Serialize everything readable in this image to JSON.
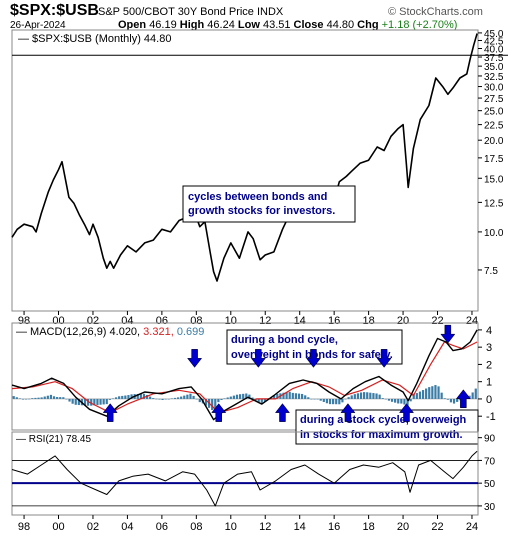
{
  "header": {
    "symbol": "$SPX:$USB",
    "description": "S&P 500/CBOT 30Y Bond Price INDX",
    "brand": "© StockCharts.com",
    "date": "26-Apr-2024",
    "open_label": "Open",
    "open": "46.19",
    "high_label": "High",
    "high": "46.24",
    "low_label": "Low",
    "low": "43.51",
    "close_label": "Close",
    "close": "44.80",
    "chg_label": "Chg",
    "chg": "+1.18 (+2.70%)"
  },
  "colors": {
    "price": "#000000",
    "macd": "#000000",
    "signal": "#d62020",
    "histogram": "#3a7ca5",
    "rsi": "#000000",
    "rsi_line": "#00008b",
    "annotation_text": "#00008b",
    "arrow": "#0000cc"
  },
  "chart_data": [
    {
      "type": "line",
      "legend": "$SPX:$USB (Monthly) 44.80",
      "x_ticks": [
        "98",
        "00",
        "02",
        "04",
        "06",
        "08",
        "10",
        "12",
        "14",
        "16",
        "18",
        "20",
        "22",
        "24"
      ],
      "y_ticks": [
        7.5,
        10.0,
        12.5,
        15.0,
        17.5,
        20.0,
        22.5,
        25.0,
        27.5,
        30.0,
        32.5,
        35.0,
        37.5,
        40.0,
        42.5,
        45.0
      ],
      "ylim": [
        5.5,
        46
      ],
      "scale": "log",
      "reference_line": 38.0,
      "annotation": [
        "cycles between bonds and",
        "growth stocks for investors."
      ],
      "series": [
        {
          "x": [
            1997.3,
            1997.6,
            1998.0,
            1998.5,
            1998.7,
            1999.0,
            1999.4,
            1999.7,
            2000.0,
            2000.2,
            2000.6,
            2000.9,
            2001.2,
            2001.5,
            2001.8,
            2002.0,
            2002.3,
            2002.6,
            2002.8,
            2003.0,
            2003.2,
            2003.6,
            2004.0,
            2004.5,
            2005.0,
            2005.5,
            2006.0,
            2006.5,
            2007.0,
            2007.5,
            2007.8,
            2008.2,
            2008.5,
            2008.8,
            2009.0,
            2009.2,
            2009.6,
            2010.0,
            2010.5,
            2011.0,
            2011.3,
            2011.7,
            2012.0,
            2012.5,
            2013.0,
            2013.5,
            2014.0,
            2014.5,
            2015.0,
            2015.5,
            2016.0,
            2016.3,
            2016.7,
            2017.0,
            2017.5,
            2018.0,
            2018.5,
            2018.9,
            2019.3,
            2019.7,
            2020.0,
            2020.2,
            2020.3,
            2020.6,
            2021.0,
            2021.5,
            2021.9,
            2022.3,
            2022.6,
            2022.9,
            2023.3,
            2023.7,
            2023.9,
            2024.1,
            2024.3
          ],
          "y": [
            9.6,
            10.2,
            10.6,
            10.4,
            10.0,
            11.5,
            13.5,
            14.8,
            16.0,
            17.0,
            13.0,
            12.4,
            11.4,
            10.6,
            9.8,
            10.6,
            9.6,
            8.2,
            7.6,
            8.0,
            7.6,
            8.4,
            9.0,
            8.6,
            9.2,
            9.4,
            10.2,
            10.0,
            10.9,
            11.2,
            12.0,
            10.4,
            10.8,
            8.6,
            7.4,
            6.9,
            8.2,
            9.2,
            8.2,
            10.0,
            9.5,
            8.1,
            8.4,
            8.6,
            10.2,
            11.7,
            12.8,
            13.4,
            13.0,
            12.9,
            12.7,
            14.6,
            15.2,
            15.8,
            16.8,
            17.2,
            19.0,
            18.5,
            20.6,
            21.8,
            22.5,
            16.5,
            14.0,
            18.8,
            23.4,
            26.0,
            32.0,
            30.0,
            28.3,
            29.7,
            32.0,
            33.0,
            37.0,
            41.0,
            44.8
          ]
        }
      ]
    },
    {
      "type": "line",
      "legend_name": "MACD(12,26,9)",
      "legend_values": [
        "4.020",
        "3.321",
        "0.699"
      ],
      "y_ticks": [
        -1,
        0,
        1,
        2,
        3,
        4
      ],
      "ylim": [
        -1.8,
        4.4
      ],
      "annotations": [
        [
          "during a bond cycle,",
          "overweight in bonds for safety."
        ],
        [
          "during a stock cycle, overweigh",
          "in stocks for maximum growth."
        ]
      ],
      "arrows": [
        {
          "x": 2003.0,
          "direction": "up"
        },
        {
          "x": 2007.9,
          "direction": "down"
        },
        {
          "x": 2009.3,
          "direction": "up"
        },
        {
          "x": 2011.6,
          "direction": "down"
        },
        {
          "x": 2013.0,
          "direction": "up"
        },
        {
          "x": 2014.8,
          "direction": "down"
        },
        {
          "x": 2016.8,
          "direction": "up"
        },
        {
          "x": 2018.9,
          "direction": "down"
        },
        {
          "x": 2020.2,
          "direction": "up"
        },
        {
          "x": 2022.6,
          "direction": "down"
        },
        {
          "x": 2023.5,
          "direction": "up"
        }
      ],
      "series": [
        {
          "name": "MACD",
          "x": [
            1997.3,
            1998.0,
            1999.0,
            1999.6,
            2000.3,
            2001.0,
            2001.8,
            2002.8,
            2003.5,
            2004.3,
            2005.0,
            2006.0,
            2007.0,
            2007.7,
            2008.3,
            2009.0,
            2009.6,
            2010.3,
            2011.0,
            2011.8,
            2012.5,
            2013.4,
            2014.2,
            2015.0,
            2015.7,
            2016.4,
            2017.1,
            2017.8,
            2018.6,
            2019.3,
            2020.0,
            2020.3,
            2020.8,
            2021.5,
            2022.0,
            2022.5,
            2022.9,
            2023.4,
            2023.9,
            2024.3
          ],
          "y": [
            0.8,
            0.6,
            0.9,
            1.2,
            0.9,
            0.1,
            -0.6,
            -1.0,
            -0.4,
            0.1,
            0.4,
            0.3,
            0.6,
            0.7,
            0.0,
            -1.2,
            -0.7,
            -0.3,
            0.1,
            -0.3,
            0.2,
            0.9,
            1.1,
            0.9,
            0.4,
            0.0,
            0.6,
            1.0,
            1.3,
            0.8,
            0.4,
            -0.1,
            0.9,
            2.5,
            3.5,
            3.3,
            2.8,
            2.9,
            3.3,
            4.0
          ]
        },
        {
          "name": "Signal",
          "x": [
            1997.3,
            1998.5,
            1999.8,
            2000.8,
            2001.8,
            2003.0,
            2004.0,
            2005.5,
            2007.0,
            2008.2,
            2009.3,
            2010.4,
            2011.5,
            2012.6,
            2013.6,
            2014.7,
            2015.7,
            2016.6,
            2017.6,
            2018.8,
            2019.8,
            2020.6,
            2021.6,
            2022.4,
            2022.9,
            2023.5,
            2024.3
          ],
          "y": [
            0.6,
            0.7,
            1.0,
            0.6,
            -0.2,
            -0.8,
            -0.3,
            0.3,
            0.5,
            0.3,
            -0.8,
            -0.5,
            0.0,
            0.0,
            0.6,
            1.0,
            0.7,
            0.2,
            0.5,
            1.1,
            0.8,
            0.2,
            2.0,
            3.3,
            3.1,
            2.9,
            3.3
          ]
        }
      ]
    },
    {
      "type": "line",
      "legend_name": "RSI(21)",
      "legend_value": "78.45",
      "y_ticks": [
        30,
        50,
        70,
        90
      ],
      "ylim": [
        22,
        95
      ],
      "thresholds": [
        70,
        50,
        30
      ],
      "x_ticks": [
        "98",
        "00",
        "02",
        "04",
        "06",
        "08",
        "10",
        "12",
        "14",
        "16",
        "18",
        "20",
        "22",
        "24"
      ],
      "series": [
        {
          "name": "RSI",
          "x": [
            1997.3,
            1998.2,
            1999.0,
            1999.8,
            2000.5,
            2001.3,
            2002.2,
            2002.8,
            2003.5,
            2004.3,
            2005.2,
            2006.2,
            2007.2,
            2007.9,
            2008.6,
            2009.1,
            2009.6,
            2010.4,
            2011.2,
            2011.7,
            2012.6,
            2013.5,
            2014.3,
            2015.1,
            2016.0,
            2016.9,
            2017.7,
            2018.6,
            2019.4,
            2020.1,
            2020.4,
            2020.9,
            2021.6,
            2022.4,
            2022.9,
            2023.5,
            2024.0,
            2024.3
          ],
          "y": [
            62,
            58,
            66,
            74,
            62,
            50,
            44,
            40,
            52,
            56,
            58,
            52,
            60,
            58,
            44,
            30,
            50,
            58,
            60,
            44,
            52,
            62,
            66,
            58,
            50,
            62,
            66,
            64,
            68,
            60,
            42,
            66,
            70,
            60,
            54,
            64,
            74,
            78
          ]
        }
      ]
    }
  ]
}
